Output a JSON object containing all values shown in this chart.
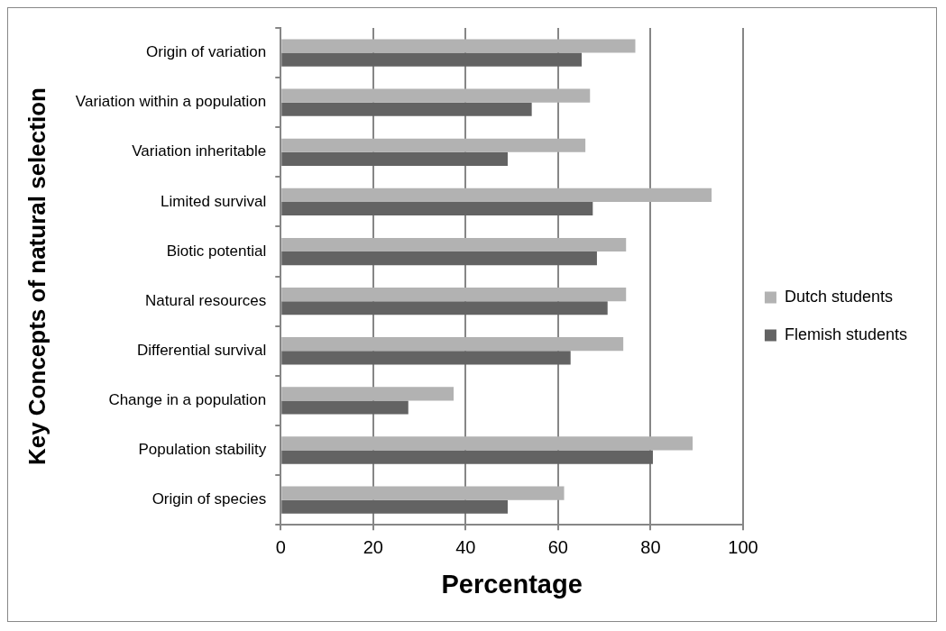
{
  "chart_data": {
    "type": "bar",
    "orientation": "horizontal",
    "xlabel": "Percentage",
    "ylabel": "Key Concepts of natural selection",
    "categories": [
      "Origin of variation",
      "Variation within a population",
      "Variation inheritable",
      "Limited survival",
      "Biotic potential",
      "Natural resources",
      "Differential survival",
      "Change in a population",
      "Population stability",
      "Origin of species"
    ],
    "series": [
      {
        "name": "Dutch students",
        "color": "#b2b2b2",
        "values": [
          76.7,
          66.9,
          65.9,
          93.2,
          74.7,
          74.7,
          74.1,
          37.4,
          89.1,
          61.3
        ]
      },
      {
        "name": "Flemish students",
        "color": "#636363",
        "values": [
          65.1,
          54.3,
          49.1,
          67.5,
          68.4,
          70.7,
          62.7,
          27.6,
          80.5,
          49.1
        ]
      }
    ],
    "xlim": [
      0,
      100
    ],
    "xticks": [
      0,
      20,
      40,
      60,
      80,
      100
    ],
    "grid": "x",
    "legend": "right"
  }
}
